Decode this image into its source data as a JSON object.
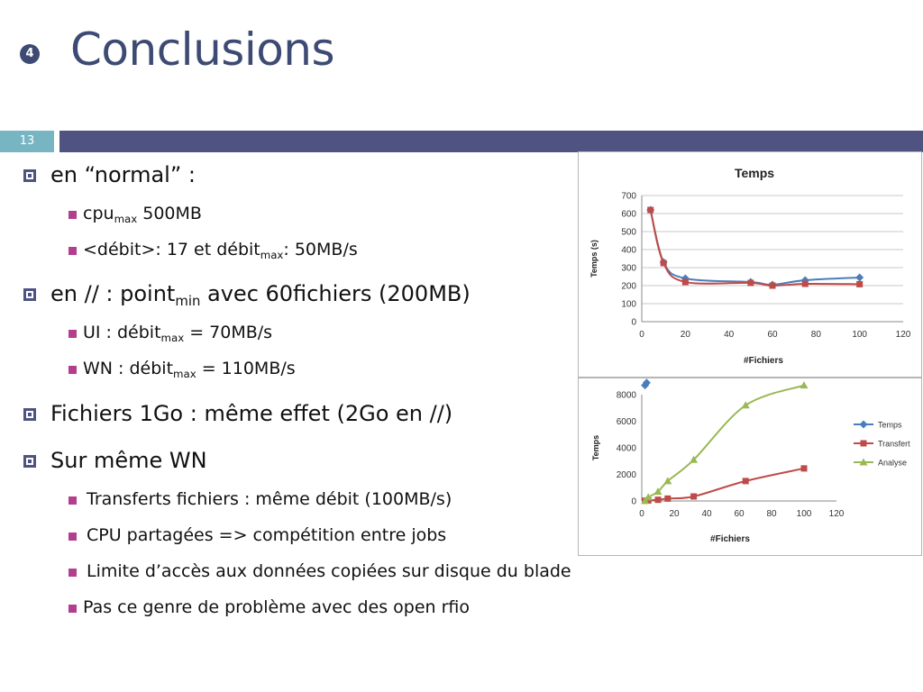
{
  "slide": {
    "badge": "4",
    "title": "Conclusions",
    "number": "13"
  },
  "bullets": [
    {
      "text": "en “normal” :"
    },
    {
      "pre": "cpu",
      "sub": "max",
      "post": " 500MB"
    },
    {
      "pre": "<débit>: 17  et  débit",
      "sub": "max",
      "post": ": 50MB/s"
    },
    {
      "pre": "en // : point",
      "sub": "min",
      "post": " avec 60fichiers (200MB)"
    },
    {
      "pre": "UI : débit",
      "sub": "max",
      "post": " = 70MB/s"
    },
    {
      "pre": "WN : débit",
      "sub": "max",
      "post": " = 110MB/s"
    },
    {
      "text": "Fichiers 1Go : même effet (2Go en //)"
    },
    {
      "text": "Sur même WN"
    },
    {
      "text": " Transferts fichiers : même débit (100MB/s)"
    },
    {
      "text": " CPU partagées => compétition entre jobs"
    },
    {
      "text": " Limite d’accès aux données copiées sur disque du blade"
    },
    {
      "text": "Pas ce genre de problème avec des open rfio"
    }
  ],
  "colors": {
    "title": "#3d4a73",
    "bar_left": "#78b5c3",
    "bar_right": "#4e5382",
    "bullet_l1": "#4e5382",
    "bullet_l2": "#b23e8d"
  },
  "chart_data": [
    {
      "type": "line",
      "title": "Temps",
      "xlabel": "#Fichiers",
      "ylabel": "Temps (s)",
      "xlim": [
        0,
        120
      ],
      "ylim": [
        0,
        700
      ],
      "xticks": [
        0,
        20,
        40,
        60,
        80,
        100,
        120
      ],
      "yticks": [
        0,
        100,
        200,
        300,
        400,
        500,
        600,
        700
      ],
      "legend": "none",
      "grid": true,
      "series": [
        {
          "color": "#4a7ebb",
          "marker": "diamond",
          "x": [
            4,
            10,
            20,
            50,
            60,
            75,
            100
          ],
          "y": [
            620,
            330,
            240,
            220,
            205,
            230,
            245
          ]
        },
        {
          "color": "#be4b48",
          "marker": "square",
          "x": [
            4,
            10,
            20,
            50,
            60,
            75,
            100
          ],
          "y": [
            620,
            325,
            220,
            215,
            200,
            210,
            208
          ]
        }
      ]
    },
    {
      "type": "line",
      "title": "",
      "xlabel": "#Fichiers",
      "ylabel": "Temps",
      "xlim": [
        0,
        120
      ],
      "ylim": [
        0,
        8000
      ],
      "xticks": [
        0,
        20,
        40,
        60,
        80,
        100,
        120
      ],
      "yticks": [
        0,
        2000,
        4000,
        6000,
        8000
      ],
      "legend": "right",
      "grid": false,
      "series": [
        {
          "name": "Temps",
          "color": "#4a7ebb",
          "marker": "diamond",
          "x": [
            2,
            3
          ],
          "y": [
            8700,
            8900
          ]
        },
        {
          "name": "Transfert",
          "color": "#be4b48",
          "marker": "square",
          "x": [
            2,
            4,
            10,
            16,
            32,
            64,
            100
          ],
          "y": [
            20,
            40,
            90,
            180,
            340,
            1500,
            2450
          ]
        },
        {
          "name": "Analyse",
          "color": "#98b954",
          "marker": "triangle",
          "x": [
            2,
            4,
            10,
            16,
            32,
            64,
            100
          ],
          "y": [
            20,
            280,
            700,
            1500,
            3100,
            7200,
            8700
          ]
        }
      ]
    }
  ]
}
